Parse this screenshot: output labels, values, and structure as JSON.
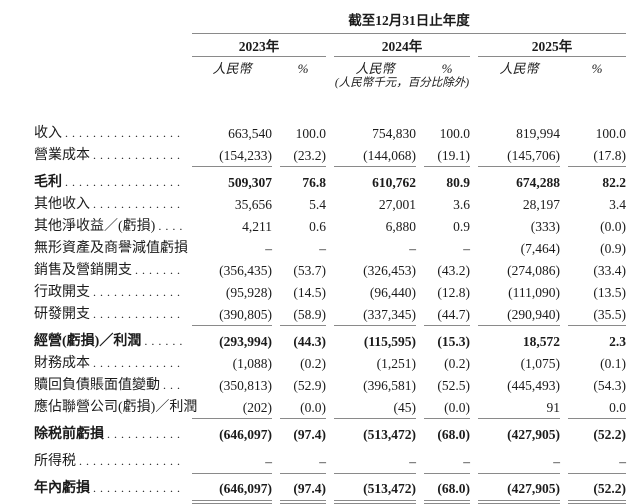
{
  "colors": {
    "text": "#1b1b1b",
    "rule_line": "#8a8a8a",
    "background": "#ffffff"
  },
  "header": {
    "period_title": "截至12月31日止年度",
    "unit_note": "(人民幣千元，百分比除外)",
    "years": [
      {
        "label": "2023年",
        "currency_label": "人民幣",
        "percent_label": "%"
      },
      {
        "label": "2024年",
        "currency_label": "人民幣",
        "percent_label": "%"
      },
      {
        "label": "2025年",
        "currency_label": "人民幣",
        "percent_label": "%"
      }
    ]
  },
  "table": {
    "rows": [
      {
        "label": "收入",
        "bold": false,
        "values": [
          "663,540",
          "100.0",
          "754,830",
          "100.0",
          "819,994",
          "100.0"
        ],
        "rule_after": null
      },
      {
        "label": "營業成本",
        "bold": false,
        "values": [
          "(154,233)",
          "(23.2)",
          "(144,068)",
          "(19.1)",
          "(145,706)",
          "(17.8)"
        ],
        "rule_after": "single"
      },
      {
        "label": "毛利",
        "bold": true,
        "values": [
          "509,307",
          "76.8",
          "610,762",
          "80.9",
          "674,288",
          "82.2"
        ],
        "rule_after": null
      },
      {
        "label": "其他收入",
        "bold": false,
        "values": [
          "35,656",
          "5.4",
          "27,001",
          "3.6",
          "28,197",
          "3.4"
        ],
        "rule_after": null
      },
      {
        "label": "其他淨收益／(虧損)",
        "bold": false,
        "values": [
          "4,211",
          "0.6",
          "6,880",
          "0.9",
          "(333)",
          "(0.0)"
        ],
        "rule_after": null
      },
      {
        "label": "無形資產及商譽減值虧損",
        "bold": false,
        "values": [
          "–",
          "–",
          "–",
          "–",
          "(7,464)",
          "(0.9)"
        ],
        "rule_after": null
      },
      {
        "label": "銷售及營銷開支",
        "bold": false,
        "values": [
          "(356,435)",
          "(53.7)",
          "(326,453)",
          "(43.2)",
          "(274,086)",
          "(33.4)"
        ],
        "rule_after": null
      },
      {
        "label": "行政開支",
        "bold": false,
        "values": [
          "(95,928)",
          "(14.5)",
          "(96,440)",
          "(12.8)",
          "(111,090)",
          "(13.5)"
        ],
        "rule_after": null
      },
      {
        "label": "研發開支",
        "bold": false,
        "values": [
          "(390,805)",
          "(58.9)",
          "(337,345)",
          "(44.7)",
          "(290,940)",
          "(35.5)"
        ],
        "rule_after": "single"
      },
      {
        "label": "經營(虧損)／利潤",
        "bold": true,
        "values": [
          "(293,994)",
          "(44.3)",
          "(115,595)",
          "(15.3)",
          "18,572",
          "2.3"
        ],
        "rule_after": null
      },
      {
        "label": "財務成本",
        "bold": false,
        "values": [
          "(1,088)",
          "(0.2)",
          "(1,251)",
          "(0.2)",
          "(1,075)",
          "(0.1)"
        ],
        "rule_after": null
      },
      {
        "label": "贖回負債賬面值變動",
        "bold": false,
        "values": [
          "(350,813)",
          "(52.9)",
          "(396,581)",
          "(52.5)",
          "(445,493)",
          "(54.3)"
        ],
        "rule_after": null
      },
      {
        "label": "應佔聯營公司(虧損)／利潤",
        "bold": false,
        "values": [
          "(202)",
          "(0.0)",
          "(45)",
          "(0.0)",
          "91",
          "0.0"
        ],
        "rule_after": "single"
      },
      {
        "label": "除税前虧損",
        "bold": true,
        "values": [
          "(646,097)",
          "(97.4)",
          "(513,472)",
          "(68.0)",
          "(427,905)",
          "(52.2)"
        ],
        "rule_after": null
      },
      {
        "label": "所得税",
        "bold": false,
        "extra_gap_before": true,
        "values": [
          "–",
          "–",
          "–",
          "–",
          "–",
          "–"
        ],
        "rule_after": "single"
      },
      {
        "label": "年內虧損",
        "bold": true,
        "values": [
          "(646,097)",
          "(97.4)",
          "(513,472)",
          "(68.0)",
          "(427,905)",
          "(52.2)"
        ],
        "rule_after": "double"
      }
    ]
  }
}
